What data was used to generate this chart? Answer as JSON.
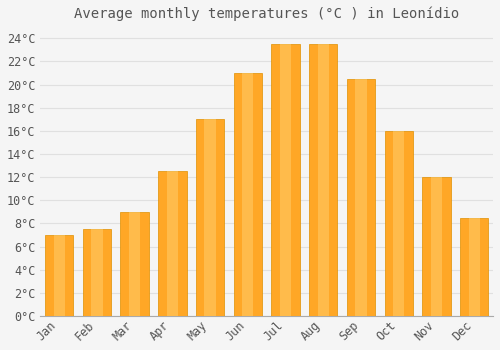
{
  "title": "Average monthly temperatures (°C ) in Leonídio",
  "months": [
    "Jan",
    "Feb",
    "Mar",
    "Apr",
    "May",
    "Jun",
    "Jul",
    "Aug",
    "Sep",
    "Oct",
    "Nov",
    "Dec"
  ],
  "values": [
    7.0,
    7.5,
    9.0,
    12.5,
    17.0,
    21.0,
    23.5,
    23.5,
    20.5,
    16.0,
    12.0,
    8.5
  ],
  "bar_color": "#FFA726",
  "bar_edge_color": "#E09000",
  "background_color": "#f5f5f5",
  "plot_bg_color": "#f5f5f5",
  "grid_color": "#e0e0e0",
  "text_color": "#555555",
  "ylim": [
    0,
    25
  ],
  "ytick_step": 2,
  "title_fontsize": 10,
  "tick_fontsize": 8.5,
  "font_family": "monospace",
  "bar_width": 0.75
}
